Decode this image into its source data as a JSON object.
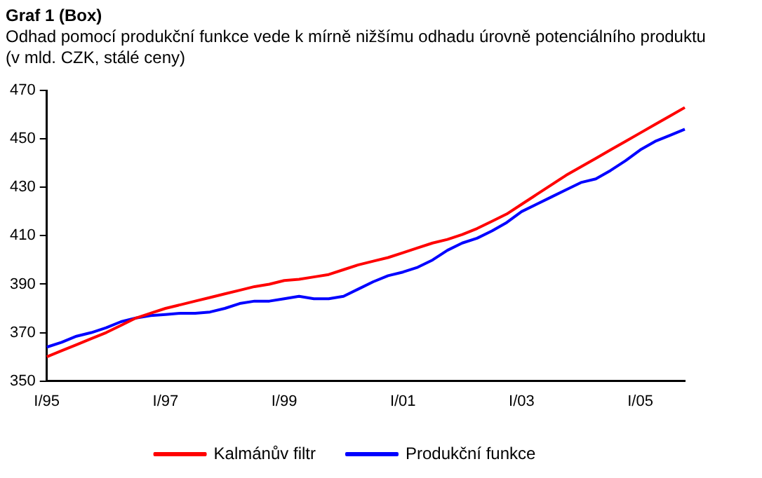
{
  "chart_data": {
    "type": "line",
    "title": "Graf 1 (Box)",
    "subtitle": "Odhad pomocí produkční funkce vede k mírně nižšímu odhadu úrovně potenciálního produktu\n(v mld. CZK, stálé ceny)",
    "categories": [
      "I/95",
      null,
      null,
      null,
      null,
      null,
      null,
      null,
      "I/97",
      null,
      null,
      null,
      null,
      null,
      null,
      null,
      "I/99",
      null,
      null,
      null,
      null,
      null,
      null,
      null,
      "I/01",
      null,
      null,
      null,
      null,
      null,
      null,
      null,
      "I/03",
      null,
      null,
      null,
      null,
      null,
      null,
      null,
      "I/05",
      null,
      null,
      null
    ],
    "series": [
      {
        "name": "Kalmánův filtr",
        "color": "#ff0000",
        "values": [
          360,
          362.5,
          365,
          367.5,
          370,
          373,
          376,
          378,
          380,
          381.5,
          383,
          384.5,
          386,
          387.5,
          389,
          390,
          391.5,
          392,
          393,
          394,
          396,
          398,
          399.5,
          401,
          403,
          405,
          407,
          408.5,
          410.5,
          413,
          416,
          419,
          423,
          427,
          431,
          435,
          438.5,
          442,
          445.5,
          449,
          452.5,
          456,
          459.5,
          463
        ]
      },
      {
        "name": "Produkční funkce",
        "color": "#0000ff",
        "values": [
          364,
          366,
          368.5,
          370,
          372,
          374.5,
          376,
          377,
          377.5,
          378,
          378,
          378.5,
          380,
          382,
          383,
          383,
          384,
          385,
          384,
          384,
          385,
          388,
          391,
          393.5,
          395,
          397,
          400,
          404,
          407,
          409,
          412,
          415.5,
          420,
          423,
          426,
          429,
          432,
          433.5,
          437,
          441,
          445.5,
          449,
          451.5,
          454
        ]
      }
    ],
    "ylim": [
      350,
      470
    ],
    "yticks": [
      350,
      370,
      390,
      410,
      430,
      450,
      470
    ],
    "grid": false,
    "legend": "bottom",
    "marker": "none",
    "line_style": "solid"
  }
}
